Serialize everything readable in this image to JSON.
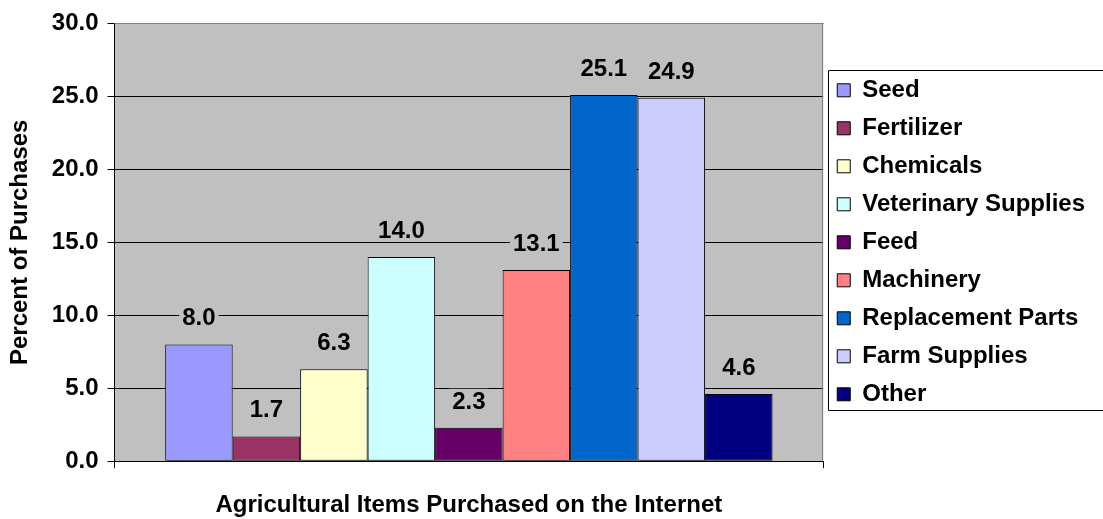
{
  "chart_data": {
    "type": "bar",
    "xlabel": "Agricultural Items Purchased on the Internet",
    "ylabel": "Percent of Purchases",
    "categories": [
      null
    ],
    "series": [
      {
        "name": "Seed",
        "color": "#9999ff",
        "values": [
          8.0
        ],
        "value_labels": [
          "8.0"
        ]
      },
      {
        "name": "Fertilizer",
        "color": "#993366",
        "values": [
          1.7
        ],
        "value_labels": [
          "1.7"
        ]
      },
      {
        "name": "Chemicals",
        "color": "#ffffcc",
        "values": [
          6.3
        ],
        "value_labels": [
          "6.3"
        ]
      },
      {
        "name": "Veterinary Supplies",
        "color": "#ccffff",
        "values": [
          14.0
        ],
        "value_labels": [
          "14.0"
        ]
      },
      {
        "name": "Feed",
        "color": "#660066",
        "values": [
          2.3
        ],
        "value_labels": [
          "2.3"
        ]
      },
      {
        "name": "Machinery",
        "color": "#ff8080",
        "values": [
          13.1
        ],
        "value_labels": [
          "13.1"
        ]
      },
      {
        "name": "Replacement Parts",
        "color": "#0066cc",
        "values": [
          25.1
        ],
        "value_labels": [
          "25.1"
        ]
      },
      {
        "name": "Farm Supplies",
        "color": "#ccccff",
        "values": [
          24.9
        ],
        "value_labels": [
          "24.9"
        ]
      },
      {
        "name": "Other",
        "color": "#000080",
        "values": [
          4.6
        ],
        "value_labels": [
          "4.6"
        ]
      }
    ],
    "ylim": [
      0,
      30
    ],
    "yticks": [
      {
        "value": 0,
        "label": "0.0"
      },
      {
        "value": 5,
        "label": "5.0"
      },
      {
        "value": 10,
        "label": "10.0"
      },
      {
        "value": 15,
        "label": "15.0"
      },
      {
        "value": 20,
        "label": "20.0"
      },
      {
        "value": 25,
        "label": "25.0"
      },
      {
        "value": 30,
        "label": "30.0"
      }
    ],
    "grid": "y",
    "legend": "right"
  }
}
